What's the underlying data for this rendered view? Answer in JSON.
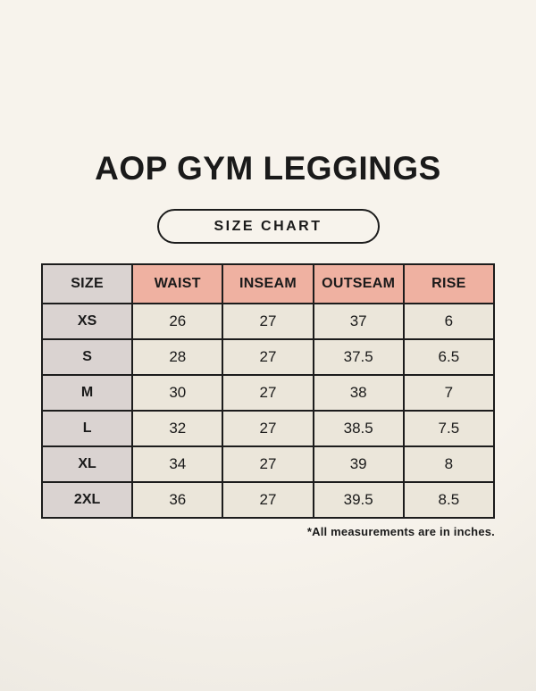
{
  "page": {
    "title": "AOP GYM LEGGINGS",
    "badge": "SIZE CHART",
    "footnote": "*All measurements are in inches."
  },
  "colors": {
    "background": "#f7f3ec",
    "background_edge": "#ebe7df",
    "header_pink": "#efb1a1",
    "header_gray": "#dad3d1",
    "cell_cream": "#ebe6da",
    "border": "#1c1c1c",
    "text": "#1a1a1a"
  },
  "chart_data": {
    "type": "table",
    "title": "AOP GYM LEGGINGS — SIZE CHART",
    "units": "inches",
    "columns": [
      "SIZE",
      "WAIST",
      "INSEAM",
      "OUTSEAM",
      "RISE"
    ],
    "rows": [
      {
        "size": "XS",
        "values": [
          "26",
          "27",
          "37",
          "6"
        ]
      },
      {
        "size": "S",
        "values": [
          "28",
          "27",
          "37.5",
          "6.5"
        ]
      },
      {
        "size": "M",
        "values": [
          "30",
          "27",
          "38",
          "7"
        ]
      },
      {
        "size": "L",
        "values": [
          "32",
          "27",
          "38.5",
          "7.5"
        ]
      },
      {
        "size": "XL",
        "values": [
          "34",
          "27",
          "39",
          "8"
        ]
      },
      {
        "size": "2XL",
        "values": [
          "36",
          "27",
          "39.5",
          "8.5"
        ]
      }
    ]
  }
}
